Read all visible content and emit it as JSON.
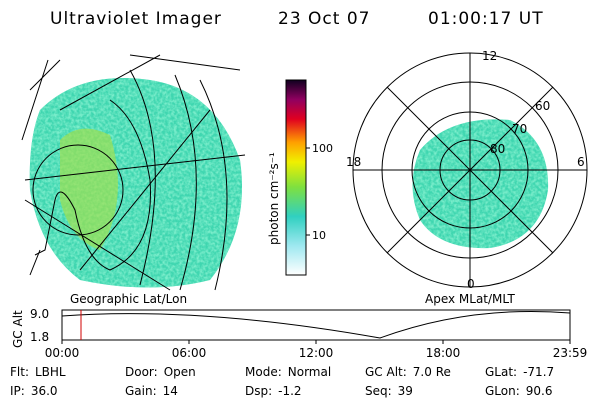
{
  "header": {
    "title": "Ultraviolet Imager",
    "date": "23 Oct 07",
    "time": "01:00:17 UT"
  },
  "left_panel": {
    "label": "Geographic Lat/Lon"
  },
  "right_panel": {
    "label": "Apex MLat/MLT",
    "mlt_labels": [
      "12",
      "18",
      "6",
      "0"
    ],
    "mlat_labels": [
      "60",
      "70",
      "80"
    ]
  },
  "colorbar": {
    "label": "photon cm⁻²s⁻¹",
    "ticks": [
      "100",
      "10"
    ]
  },
  "altitude": {
    "ylabel": "GC Alt",
    "yticks": [
      "9.0",
      "1.8"
    ],
    "xticks": [
      "00:00",
      "06:00",
      "12:00",
      "18:00",
      "23:59"
    ]
  },
  "footer": {
    "rows": [
      [
        [
          "Flt:",
          "LBHL"
        ],
        [
          "Door:",
          "Open"
        ],
        [
          "Mode:",
          "Normal"
        ],
        [
          "GC Alt:",
          "7.0 Re"
        ],
        [
          "GLat:",
          "-71.7"
        ]
      ],
      [
        [
          "IP:",
          "36.0"
        ],
        [
          "Gain:",
          "14"
        ],
        [
          "Dsp:",
          "-1.2"
        ],
        [
          "Seq:",
          "39"
        ],
        [
          "GLon:",
          "90.6"
        ]
      ]
    ]
  }
}
